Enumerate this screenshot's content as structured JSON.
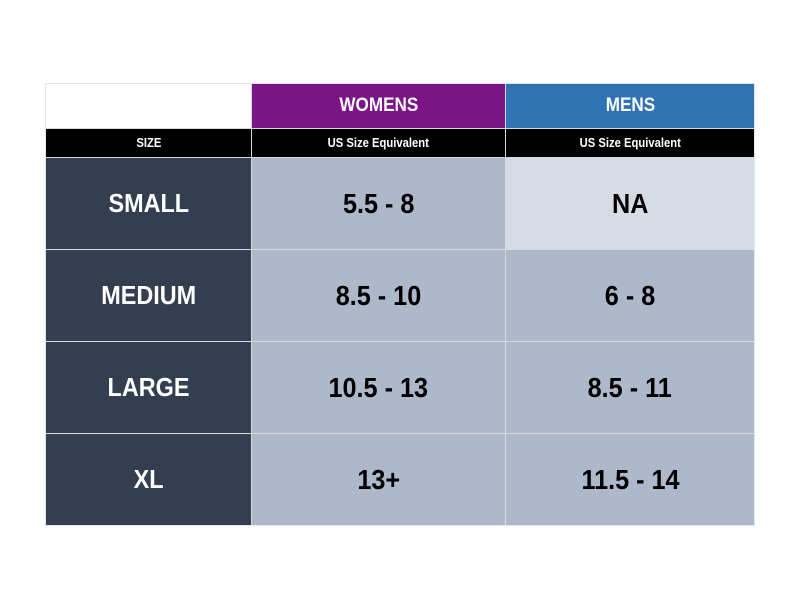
{
  "header": {
    "womens": "WOMENS",
    "mens": "MENS"
  },
  "subheader": {
    "size": "SIZE",
    "womens": "US Size Equivalent",
    "mens": "US Size Equivalent"
  },
  "rows": [
    {
      "size": "SMALL",
      "womens": "5.5 - 8",
      "mens": "NA"
    },
    {
      "size": "MEDIUM",
      "womens": "8.5 - 10",
      "mens": "6 - 8"
    },
    {
      "size": "LARGE",
      "womens": "10.5 - 13",
      "mens": "8.5 - 11"
    },
    {
      "size": "XL",
      "womens": "13+",
      "mens": "11.5 - 14"
    }
  ],
  "colors": {
    "womens": "#7B1486",
    "mens": "#2E74B5",
    "size_column": "#333F50",
    "cell": "#ADB9CA",
    "na_cell": "#D6DCE4"
  }
}
